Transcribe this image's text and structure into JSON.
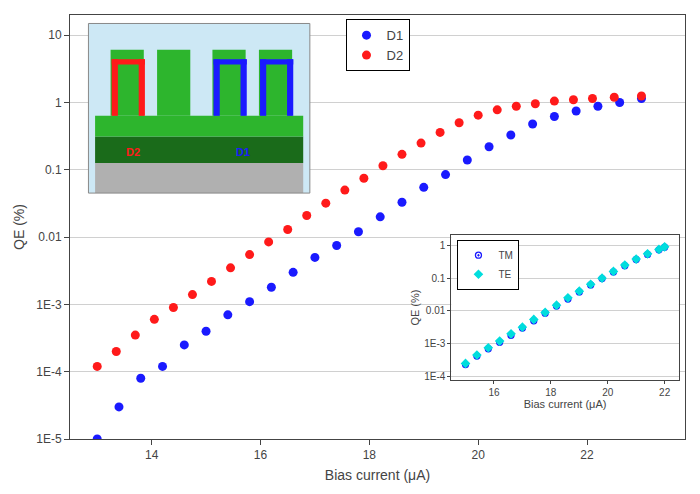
{
  "chart_data": [
    {
      "type": "scatter",
      "xlabel": "Bias current (μA)",
      "ylabel": "QE (%)",
      "log": "y",
      "xlim": [
        12.5,
        23.8
      ],
      "ylim": [
        1e-05,
        20
      ],
      "xticks": [
        14,
        16,
        18,
        20,
        22
      ],
      "yticks": [
        {
          "value": 1e-05,
          "label": "1E-5"
        },
        {
          "value": 0.0001,
          "label": "1E-4"
        },
        {
          "value": 0.001,
          "label": "1E-3"
        },
        0.01,
        0.1,
        1,
        10
      ],
      "grid": "y",
      "legend": "upper center",
      "series": [
        {
          "name": "D1",
          "color": "#1a1aff",
          "marker": "circle",
          "x": [
            13.0,
            13.4,
            13.8,
            14.2,
            14.6,
            15.0,
            15.4,
            15.8,
            16.2,
            16.6,
            17.0,
            17.4,
            17.8,
            18.2,
            18.6,
            19.0,
            19.4,
            19.8,
            20.2,
            20.6,
            21.0,
            21.4,
            21.8,
            22.2,
            22.6,
            23.0
          ],
          "values": [
            1e-05,
            3e-05,
            8e-05,
            0.00012,
            0.00025,
            0.0004,
            0.0007,
            0.0011,
            0.0018,
            0.003,
            0.005,
            0.0075,
            0.012,
            0.02,
            0.033,
            0.055,
            0.085,
            0.14,
            0.22,
            0.33,
            0.48,
            0.62,
            0.75,
            0.88,
            1.0,
            1.15
          ]
        },
        {
          "name": "D2",
          "color": "#ff1a1a",
          "marker": "circle",
          "x": [
            13.0,
            13.35,
            13.7,
            14.05,
            14.4,
            14.75,
            15.1,
            15.45,
            15.8,
            16.15,
            16.5,
            16.85,
            17.2,
            17.55,
            17.9,
            18.25,
            18.6,
            18.95,
            19.3,
            19.65,
            20.0,
            20.35,
            20.7,
            21.05,
            21.4,
            21.75,
            22.1,
            22.5,
            23.0
          ],
          "values": [
            0.00012,
            0.0002,
            0.00035,
            0.0006,
            0.0009,
            0.0014,
            0.0022,
            0.0035,
            0.0055,
            0.0085,
            0.013,
            0.021,
            0.032,
            0.05,
            0.075,
            0.115,
            0.17,
            0.25,
            0.36,
            0.5,
            0.65,
            0.78,
            0.88,
            0.96,
            1.05,
            1.1,
            1.15,
            1.2,
            1.25
          ]
        }
      ]
    },
    {
      "type": "scatter",
      "xlabel": "Bias current (μA)",
      "ylabel": "QE (%)",
      "log": "y",
      "xlim": [
        14.5,
        22.5
      ],
      "ylim": [
        8e-05,
        2.0
      ],
      "xticks": [
        16,
        18,
        20,
        22
      ],
      "yticks": [
        {
          "value": 0.0001,
          "label": "1E-4"
        },
        {
          "value": 0.001,
          "label": "1E-3"
        },
        0.01,
        0.1,
        1
      ],
      "grid": "y",
      "legend": "upper left",
      "series": [
        {
          "name": "TM",
          "color": "#1a1aff",
          "marker": "circle-open-dot",
          "x": [
            15.0,
            15.4,
            15.8,
            16.2,
            16.6,
            17.0,
            17.4,
            17.8,
            18.2,
            18.6,
            19.0,
            19.4,
            19.8,
            20.2,
            20.6,
            21.0,
            21.4,
            21.8,
            22.0
          ],
          "values": [
            0.00023,
            0.00042,
            0.0007,
            0.0011,
            0.0018,
            0.003,
            0.005,
            0.0085,
            0.014,
            0.023,
            0.038,
            0.062,
            0.097,
            0.155,
            0.24,
            0.37,
            0.53,
            0.73,
            0.88
          ]
        },
        {
          "name": "TE",
          "color": "#00dddd",
          "marker": "diamond",
          "x": [
            15.0,
            15.4,
            15.8,
            16.2,
            16.6,
            17.0,
            17.4,
            17.8,
            18.2,
            18.6,
            19.0,
            19.4,
            19.8,
            20.2,
            20.6,
            21.0,
            21.4,
            21.8,
            22.0
          ],
          "values": [
            0.00025,
            0.00045,
            0.00075,
            0.0012,
            0.002,
            0.0032,
            0.0055,
            0.009,
            0.015,
            0.025,
            0.04,
            0.065,
            0.1,
            0.16,
            0.25,
            0.38,
            0.55,
            0.75,
            0.9
          ]
        }
      ]
    }
  ]
}
